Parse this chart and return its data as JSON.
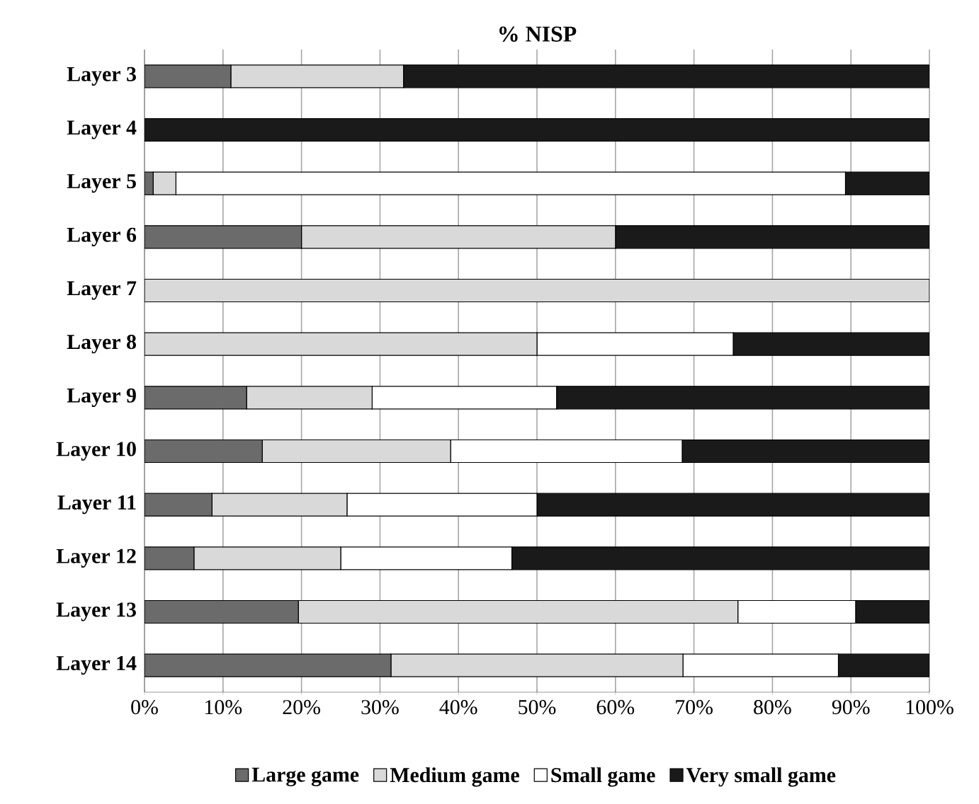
{
  "chart_data": {
    "type": "bar",
    "orientation": "horizontal",
    "stacked": true,
    "title": "% NISP",
    "categories": [
      "Layer 3",
      "Layer 4",
      "Layer 5",
      "Layer 6",
      "Layer 7",
      "Layer 8",
      "Layer 9",
      "Layer 10",
      "Layer 11",
      "Layer 12",
      "Layer 13",
      "Layer 14"
    ],
    "series": [
      {
        "name": "Large game",
        "color": "#6b6b6b",
        "values": [
          11,
          0,
          1.1,
          20,
          0,
          0,
          13,
          15,
          8.6,
          6.3,
          19.6,
          31.4
        ]
      },
      {
        "name": "Medium game",
        "color": "#d9d9d9",
        "values": [
          22,
          0,
          2.9,
          40,
          100,
          50,
          16,
          24,
          17.2,
          18.7,
          56,
          37.2
        ]
      },
      {
        "name": "Small game",
        "color": "#ffffff",
        "values": [
          0,
          0,
          85.3,
          0,
          0,
          25,
          23.5,
          29.5,
          24.2,
          21.8,
          15,
          19.8
        ]
      },
      {
        "name": "Very small game",
        "color": "#1a1a1a",
        "values": [
          67,
          100,
          10.7,
          40,
          0,
          25,
          47.5,
          31.5,
          50,
          53.2,
          9.4,
          11.6
        ]
      }
    ],
    "xlim": [
      0,
      100
    ],
    "xticks": [
      {
        "value": 0,
        "label": "0%"
      },
      {
        "value": 10,
        "label": "10%"
      },
      {
        "value": 20,
        "label": "20%"
      },
      {
        "value": 30,
        "label": "30%"
      },
      {
        "value": 40,
        "label": "40%"
      },
      {
        "value": 50,
        "label": "50%"
      },
      {
        "value": 60,
        "label": "60%"
      },
      {
        "value": 70,
        "label": "70%"
      },
      {
        "value": 80,
        "label": "80%"
      },
      {
        "value": 90,
        "label": "90%"
      },
      {
        "value": 100,
        "label": "100%"
      }
    ],
    "grid": "x",
    "legend": "bottom"
  }
}
